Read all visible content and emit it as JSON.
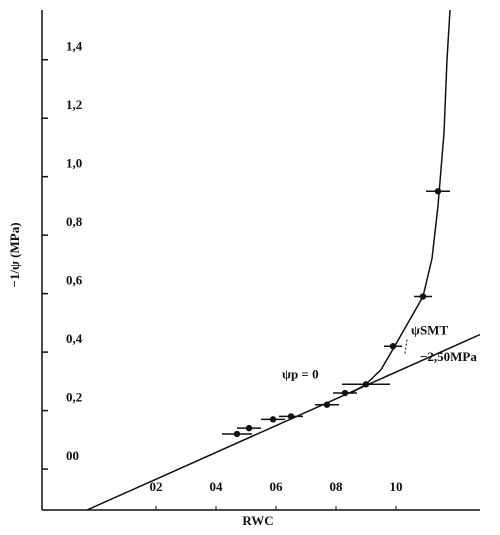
{
  "chart_data": {
    "type": "scatter",
    "xlabel": "RWC",
    "ylabel": "−1/ψ (MPa)",
    "xlim": [
      -0.18,
      1.28
    ],
    "ylim": [
      -0.14,
      1.57
    ],
    "xticks": [
      {
        "value": 0.2,
        "label": "02"
      },
      {
        "value": 0.4,
        "label": "04"
      },
      {
        "value": 0.6,
        "label": "06"
      },
      {
        "value": 0.8,
        "label": "08"
      },
      {
        "value": 1.0,
        "label": "10"
      }
    ],
    "yticks": [
      {
        "value": 0,
        "label": "00"
      },
      {
        "value": 0.2,
        "label": "0,2"
      },
      {
        "value": 0.4,
        "label": "0,4"
      },
      {
        "value": 0.6,
        "label": "0,6"
      },
      {
        "value": 0.8,
        "label": "0,8"
      },
      {
        "value": 1.0,
        "label": "1,0"
      },
      {
        "value": 1.2,
        "label": "1,2"
      },
      {
        "value": 1.4,
        "label": "1,4"
      }
    ],
    "color": "#111111",
    "points": {
      "x": [
        0.47,
        0.51,
        0.59,
        0.65,
        0.77,
        0.83,
        0.9,
        0.99,
        1.09,
        1.14
      ],
      "y": [
        0.12,
        0.14,
        0.17,
        0.18,
        0.22,
        0.26,
        0.29,
        0.42,
        0.59,
        0.95
      ],
      "xerr": [
        0.05,
        0.04,
        0.04,
        0.04,
        0.04,
        0.04,
        0.08,
        0.03,
        0.03,
        0.04
      ]
    },
    "lines": [
      {
        "x": [
          -0.03,
          1.28
        ],
        "y": [
          -0.14,
          0.46
        ]
      },
      {
        "x": [
          0.85,
          0.9,
          0.95,
          0.99,
          1.04,
          1.09,
          1.12,
          1.14,
          1.16,
          1.17,
          1.18
        ],
        "y": [
          0.26,
          0.29,
          0.34,
          0.41,
          0.5,
          0.59,
          0.72,
          0.9,
          1.15,
          1.4,
          1.57
        ]
      }
    ],
    "annotations": [
      {
        "text": "ψp = 0",
        "x": 0.62,
        "y": 0.32
      },
      {
        "text": "ψSMT",
        "x": 1.05,
        "y": 0.47
      },
      {
        "text": "−2,50MPa",
        "x": 1.08,
        "y": 0.38
      }
    ]
  }
}
